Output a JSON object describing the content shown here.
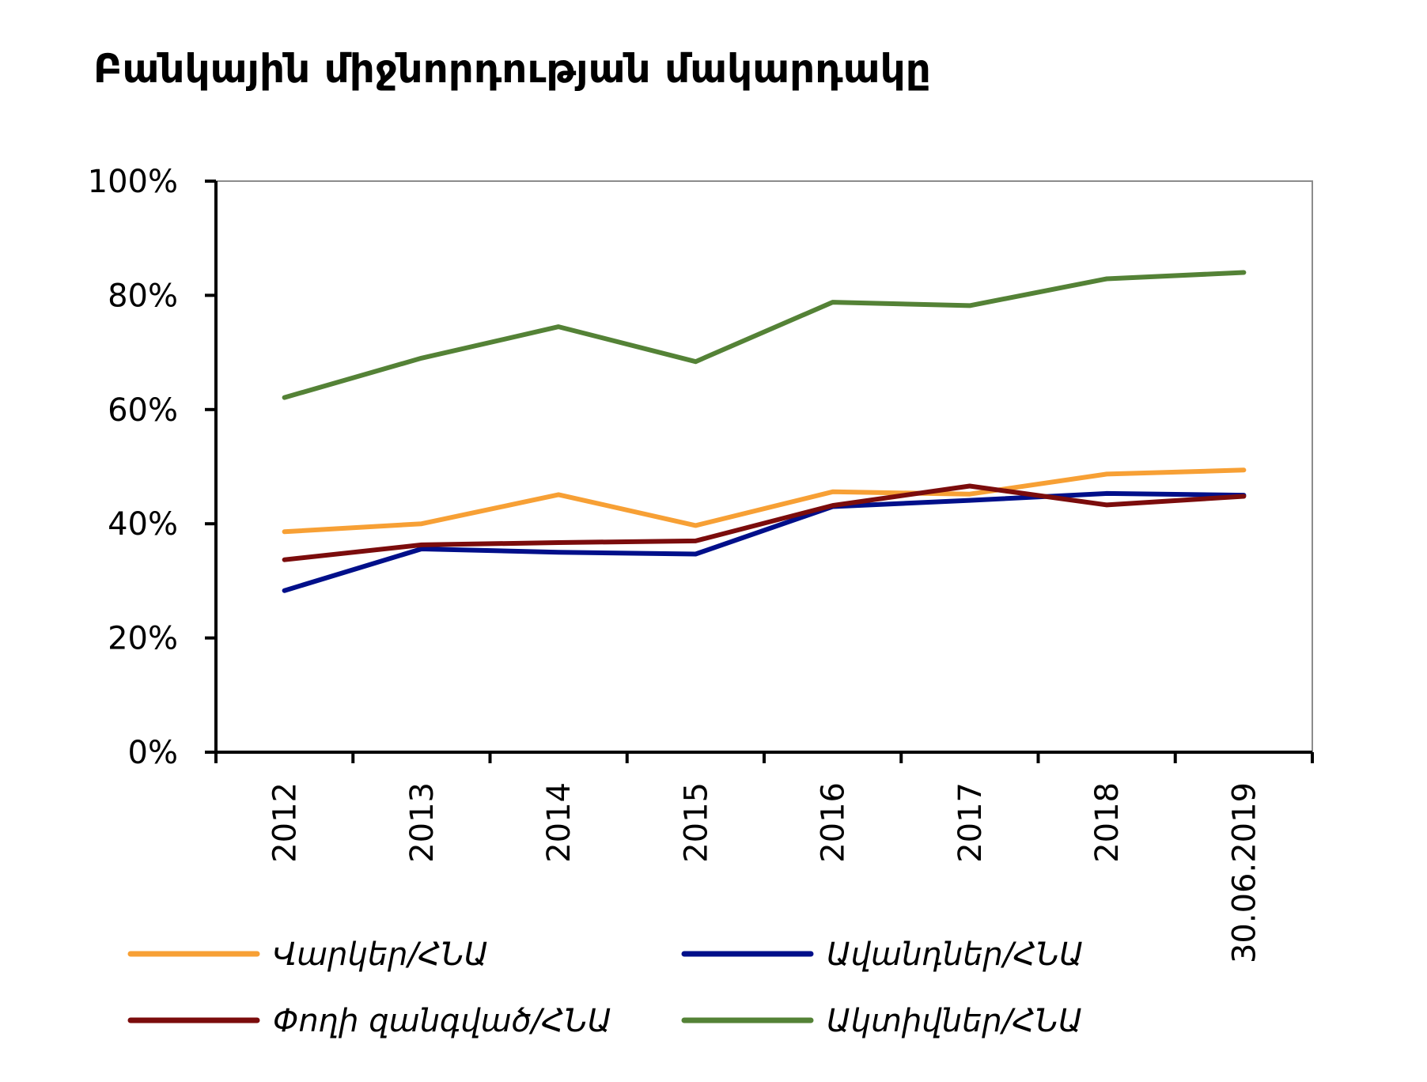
{
  "chart_data": {
    "type": "line",
    "title": "Բանկային միջնորդության մակարդակը",
    "xlabel": "",
    "ylabel": "",
    "categories": [
      "2012",
      "2013",
      "2014",
      "2015",
      "2016",
      "2017",
      "2018",
      "30.06.2019"
    ],
    "ylim": [
      0,
      100
    ],
    "yticks": [
      "0%",
      "20%",
      "40%",
      "60%",
      "80%",
      "100%"
    ],
    "ytick_values": [
      0,
      20,
      40,
      60,
      80,
      100
    ],
    "grid": false,
    "legend_position": "bottom",
    "series": [
      {
        "name": "Վարկեր/ՀՆԱ",
        "color": "#F7A035",
        "values": [
          38.6,
          40.0,
          45.1,
          39.7,
          45.6,
          45.2,
          48.7,
          49.4
        ]
      },
      {
        "name": "Ավանդներ/ՀՆԱ",
        "color": "#000F8A",
        "values": [
          28.3,
          35.6,
          35.0,
          34.7,
          43.0,
          44.1,
          45.3,
          45.0
        ]
      },
      {
        "name": "Փողի զանգված/ՀՆԱ",
        "color": "#7B0C0C",
        "values": [
          33.7,
          36.3,
          36.7,
          37.0,
          43.2,
          46.6,
          43.3,
          44.8
        ]
      },
      {
        "name": "Ակտիվներ/ՀՆԱ",
        "color": "#548236",
        "values": [
          62.1,
          69.0,
          74.5,
          68.4,
          78.8,
          78.2,
          82.9,
          84.0
        ]
      }
    ]
  }
}
